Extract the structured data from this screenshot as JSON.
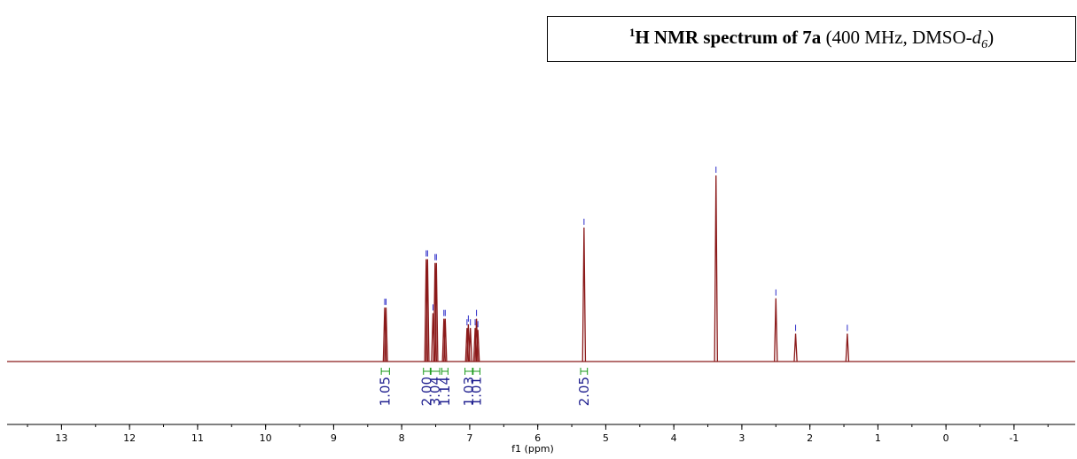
{
  "title": {
    "sup": "1",
    "bold": "H NMR spectrum of 7a",
    "middle": " (400 MHz, DMSO-",
    "italic": "d",
    "sub": "6",
    "end": ")"
  },
  "chart_data": {
    "type": "line",
    "xlabel": "f1 (ppm)",
    "xlim": [
      13.8,
      -1.9
    ],
    "x_ticks": [
      13,
      12,
      11,
      10,
      9,
      8,
      7,
      6,
      5,
      4,
      3,
      2,
      1,
      0,
      -1
    ],
    "x_tick_labels": [
      "13",
      "12",
      "11",
      "10",
      "9",
      "8",
      "7",
      "6",
      "5",
      "4",
      "3",
      "2",
      "1",
      "0",
      "-1"
    ],
    "peaks": [
      {
        "shift": 8.25,
        "height": 0.29
      },
      {
        "shift": 8.23,
        "height": 0.29
      },
      {
        "shift": 7.64,
        "height": 0.55
      },
      {
        "shift": 7.62,
        "height": 0.55
      },
      {
        "shift": 7.54,
        "height": 0.26
      },
      {
        "shift": 7.51,
        "height": 0.53
      },
      {
        "shift": 7.49,
        "height": 0.53
      },
      {
        "shift": 7.38,
        "height": 0.23
      },
      {
        "shift": 7.36,
        "height": 0.23
      },
      {
        "shift": 7.04,
        "height": 0.18
      },
      {
        "shift": 7.02,
        "height": 0.2
      },
      {
        "shift": 6.99,
        "height": 0.18
      },
      {
        "shift": 6.92,
        "height": 0.18
      },
      {
        "shift": 6.9,
        "height": 0.23
      },
      {
        "shift": 6.88,
        "height": 0.17
      },
      {
        "shift": 5.32,
        "height": 0.72
      },
      {
        "shift": 3.38,
        "height": 1.0
      },
      {
        "shift": 2.5,
        "height": 0.34
      },
      {
        "shift": 2.21,
        "height": 0.15
      },
      {
        "shift": 1.45,
        "height": 0.15
      }
    ],
    "integrals": [
      {
        "range": [
          8.3,
          8.18
        ],
        "label": "1.05"
      },
      {
        "range": [
          7.68,
          7.58
        ],
        "label": "2.00"
      },
      {
        "range": [
          7.57,
          7.44
        ],
        "label": "3.04"
      },
      {
        "range": [
          7.41,
          7.32
        ],
        "label": "1.14"
      },
      {
        "range": [
          7.07,
          6.96
        ],
        "label": "1.03"
      },
      {
        "range": [
          6.95,
          6.85
        ],
        "label": "1.01"
      },
      {
        "range": [
          5.37,
          5.27
        ],
        "label": "2.05"
      }
    ],
    "colors": {
      "spectrum": "#8b1a1a",
      "integral": "#1a9a1a",
      "label": "#1f1f8f",
      "peak_marker": "#2b2bc8"
    }
  }
}
